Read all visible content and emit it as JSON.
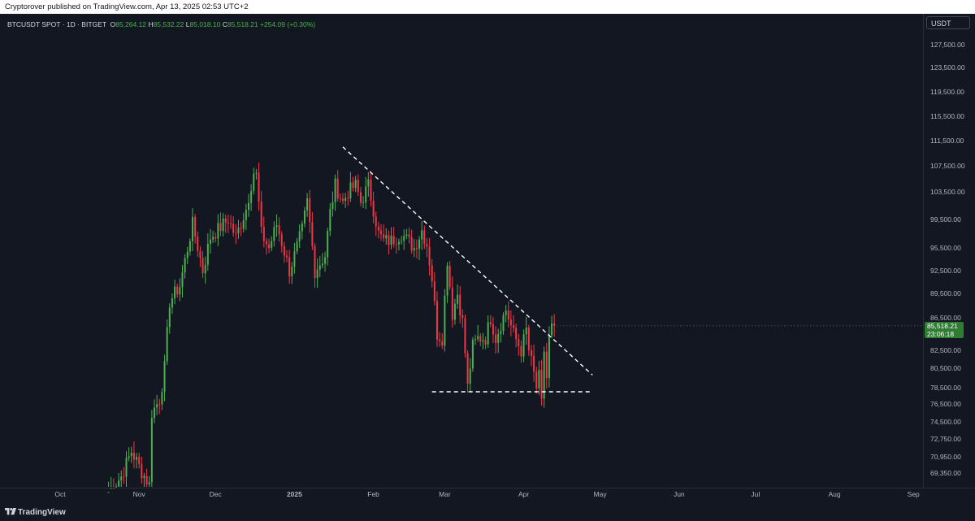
{
  "publish_line": "Cryptorover published on TradingView.com, Apr 13, 2025 02:53 UTC+2",
  "legend": {
    "symbol": "BTCUSDT SPOT · 1D · BITGET",
    "open_label": "O",
    "open": "85,264.12",
    "high_label": "H",
    "high": "85,532.22",
    "low_label": "L",
    "low": "85,018.10",
    "close_label": "C",
    "close": "85,518.21",
    "change": "+254.09 (+0.30%)"
  },
  "currency_button": "USDT",
  "last_price": {
    "price": "85,518.21",
    "countdown": "23:06:18"
  },
  "footer": {
    "brand": "TradingView"
  },
  "colors": {
    "up": "#4caf50",
    "down": "#f23645",
    "background": "#131722",
    "price_tag": "#2e7d32"
  },
  "chart_data": {
    "type": "candlestick",
    "interval": "1D",
    "y_tick_labels": [
      "127,500.00",
      "123,500.00",
      "119,500.00",
      "115,500.00",
      "111,500.00",
      "107,500.00",
      "103,500.00",
      "99,500.00",
      "95,500.00",
      "92,500.00",
      "89,500.00",
      "86,500.00",
      "82,500.00",
      "80,500.00",
      "78,500.00",
      "76,500.00",
      "74,500.00",
      "72,750.00",
      "70,950.00",
      "69,350.00"
    ],
    "y_tick_values": [
      127500,
      123500,
      119500,
      115500,
      111500,
      107500,
      103500,
      99500,
      95500,
      92500,
      89500,
      86500,
      82500,
      80500,
      78500,
      76500,
      74500,
      72750,
      70950,
      69350
    ],
    "x_tick_labels": [
      "Oct",
      "Nov",
      "Dec",
      "2025",
      "Feb",
      "Mar",
      "Apr",
      "May",
      "Jun",
      "Jul",
      "Aug",
      "Sep"
    ],
    "x_tick_dates": [
      "2024-10-01",
      "2024-11-01",
      "2024-12-01",
      "2025-01-01",
      "2025-02-01",
      "2025-03-01",
      "2025-04-01",
      "2025-05-01",
      "2025-06-01",
      "2025-07-01",
      "2025-08-01",
      "2025-09-01"
    ],
    "anchors": [
      [
        "2024-10-20",
        67500
      ],
      [
        "2024-10-25",
        69000
      ],
      [
        "2024-10-29",
        71500
      ],
      [
        "2024-10-31",
        70500
      ],
      [
        "2024-11-02",
        69500
      ],
      [
        "2024-11-05",
        68200
      ],
      [
        "2024-11-06",
        75500
      ],
      [
        "2024-11-09",
        77000
      ],
      [
        "2024-11-11",
        80500
      ],
      [
        "2024-11-13",
        88500
      ],
      [
        "2024-11-17",
        90500
      ],
      [
        "2024-11-22",
        98800
      ],
      [
        "2024-11-26",
        92500
      ],
      [
        "2024-11-29",
        97000
      ],
      [
        "2024-12-04",
        98800
      ],
      [
        "2024-12-06",
        99500
      ],
      [
        "2024-12-09",
        97000
      ],
      [
        "2024-12-13",
        101000
      ],
      [
        "2024-12-16",
        106500
      ],
      [
        "2024-12-17",
        106000
      ],
      [
        "2024-12-19",
        97500
      ],
      [
        "2024-12-22",
        95500
      ],
      [
        "2024-12-25",
        98800
      ],
      [
        "2024-12-30",
        92500
      ],
      [
        "2025-01-01",
        94500
      ],
      [
        "2025-01-04",
        98000
      ],
      [
        "2025-01-06",
        102000
      ],
      [
        "2025-01-09",
        92500
      ],
      [
        "2025-01-13",
        94500
      ],
      [
        "2025-01-15",
        100500
      ],
      [
        "2025-01-17",
        104500
      ],
      [
        "2025-01-20",
        102000
      ],
      [
        "2025-01-22",
        103500
      ],
      [
        "2025-01-25",
        104500
      ],
      [
        "2025-01-27",
        102000
      ],
      [
        "2025-01-30",
        104500
      ],
      [
        "2025-02-03",
        97500
      ],
      [
        "2025-02-05",
        96500
      ],
      [
        "2025-02-08",
        96500
      ],
      [
        "2025-02-12",
        97500
      ],
      [
        "2025-02-17",
        95500
      ],
      [
        "2025-02-20",
        98000
      ],
      [
        "2025-02-22",
        96000
      ],
      [
        "2025-02-24",
        91500
      ],
      [
        "2025-02-26",
        84500
      ],
      [
        "2025-02-28",
        84000
      ],
      [
        "2025-03-02",
        94000
      ],
      [
        "2025-03-04",
        87000
      ],
      [
        "2025-03-06",
        89500
      ],
      [
        "2025-03-08",
        86000
      ],
      [
        "2025-03-10",
        78500
      ],
      [
        "2025-03-12",
        83000
      ],
      [
        "2025-03-14",
        84000
      ],
      [
        "2025-03-17",
        84000
      ],
      [
        "2025-03-19",
        86500
      ],
      [
        "2025-03-21",
        84000
      ],
      [
        "2025-03-25",
        87500
      ],
      [
        "2025-03-28",
        84500
      ],
      [
        "2025-03-31",
        82500
      ],
      [
        "2025-04-02",
        85000
      ],
      [
        "2025-04-03",
        82500
      ],
      [
        "2025-04-06",
        78500
      ],
      [
        "2025-04-07",
        79500
      ],
      [
        "2025-04-08",
        76500
      ],
      [
        "2025-04-09",
        82500
      ],
      [
        "2025-04-10",
        79500
      ],
      [
        "2025-04-11",
        84000
      ],
      [
        "2025-04-12",
        85264
      ],
      [
        "2025-04-13",
        85518
      ]
    ],
    "annotations": [
      {
        "type": "descending-trendline",
        "from": [
          "2025-01-20",
          110500
        ],
        "to": [
          "2025-04-28",
          79800
        ]
      },
      {
        "type": "horizontal-support",
        "value": 78000,
        "from": "2025-02-24",
        "to": "2025-04-28"
      }
    ],
    "last_price": 85518.21
  }
}
